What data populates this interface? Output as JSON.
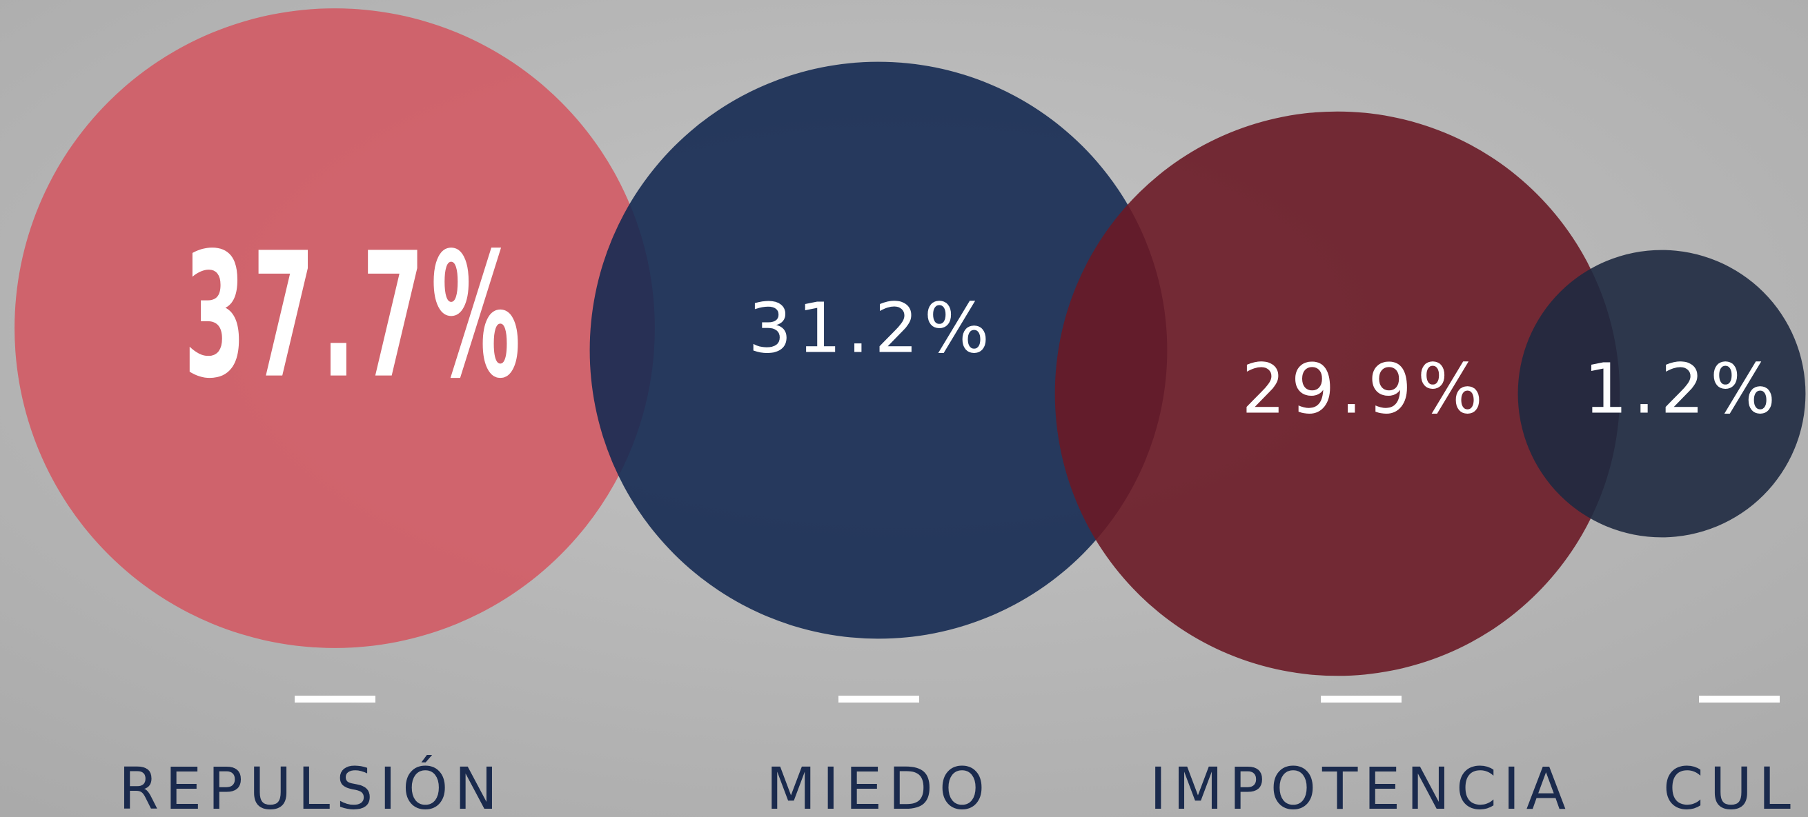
{
  "chart_data": {
    "type": "bubble",
    "categories": [
      "REPULSIÓN",
      "MIEDO",
      "IMPOTENCIA",
      "CUL"
    ],
    "values": [
      37.7,
      31.2,
      29.9,
      1.2
    ],
    "value_labels": [
      "37.7%",
      "31.2%",
      "29.9%",
      "1.2%"
    ],
    "colors": [
      "#d4555f",
      "#152a52",
      "#6a1a26",
      "#1e2940"
    ]
  }
}
